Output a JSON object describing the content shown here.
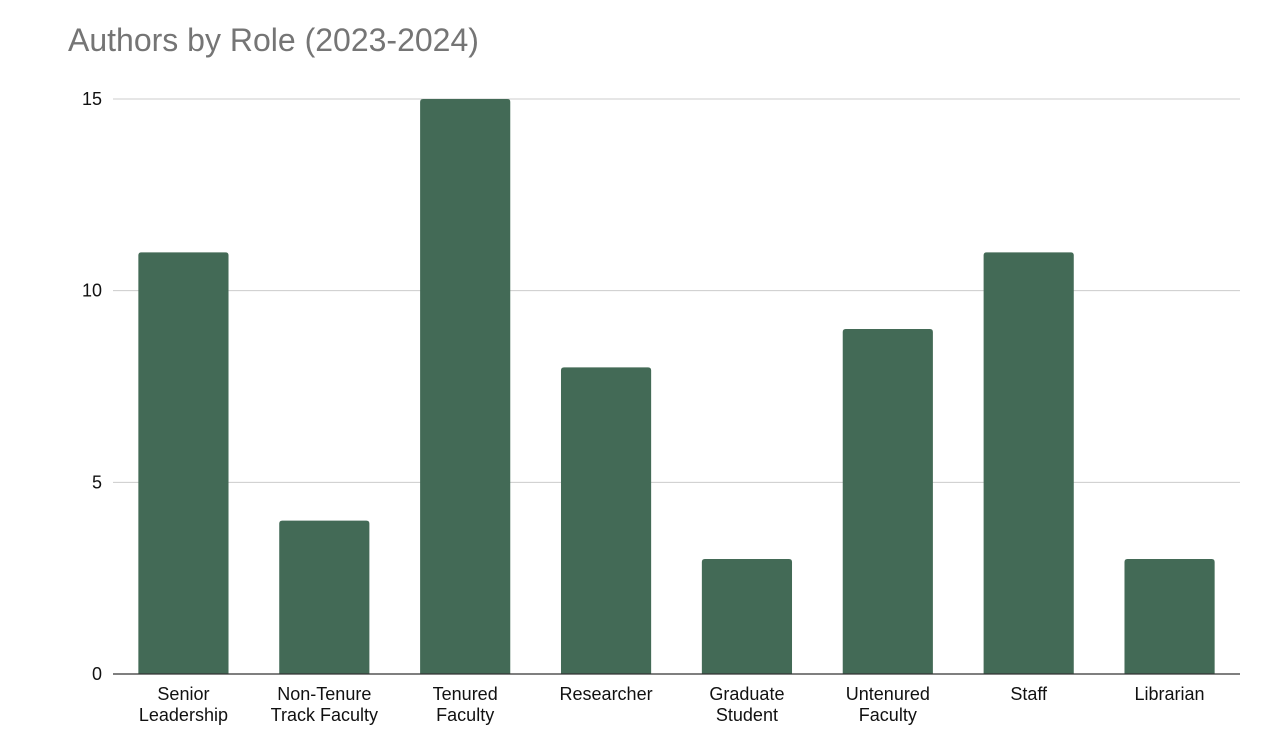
{
  "chart_data": {
    "type": "bar",
    "title": "Authors by Role (2023-2024)",
    "xlabel": "",
    "ylabel": "",
    "categories": [
      "Senior Leadership",
      "Non-Tenure Track Faculty",
      "Tenured Faculty",
      "Researcher",
      "Graduate Student",
      "Untenured Faculty",
      "Staff",
      "Librarian"
    ],
    "category_label_lines": [
      [
        "Senior",
        "Leadership"
      ],
      [
        "Non-Tenure",
        "Track Faculty"
      ],
      [
        "Tenured",
        "Faculty"
      ],
      [
        "Researcher"
      ],
      [
        "Graduate",
        "Student"
      ],
      [
        "Untenured",
        "Faculty"
      ],
      [
        "Staff"
      ],
      [
        "Librarian"
      ]
    ],
    "values": [
      11,
      4,
      15,
      8,
      3,
      9,
      11,
      3
    ],
    "ylim": [
      0,
      15
    ],
    "yticks": [
      "0",
      "5",
      "10",
      "15"
    ],
    "grid": true,
    "legend": "none",
    "bar_color": "#436a56"
  }
}
